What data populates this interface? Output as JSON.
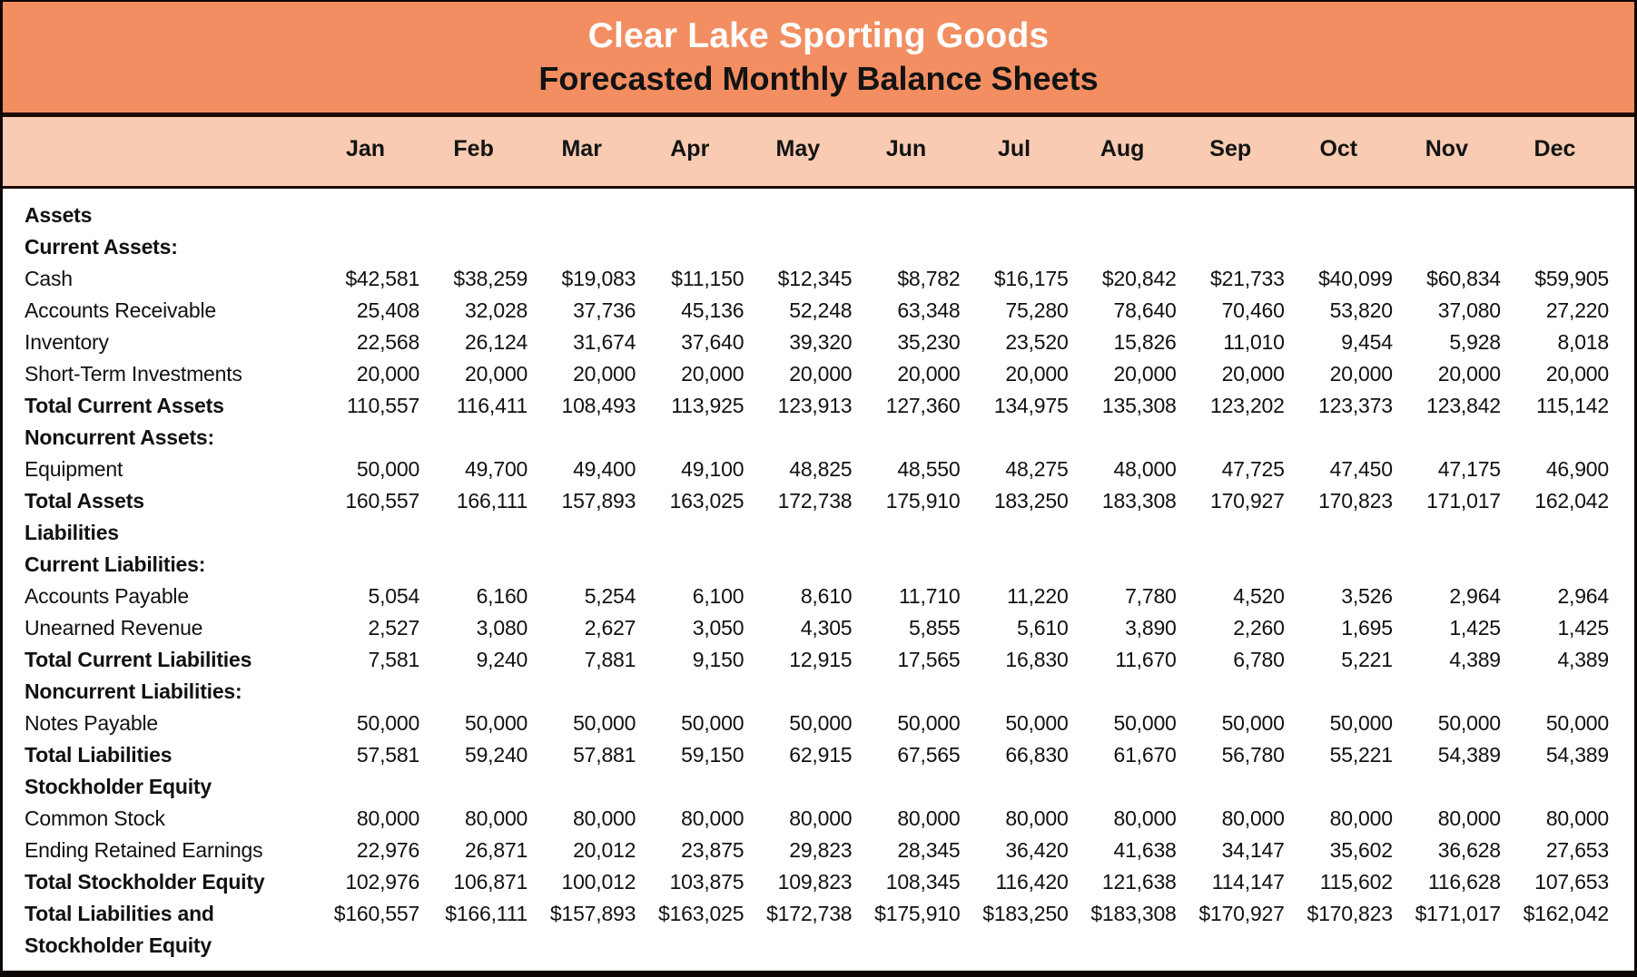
{
  "header": {
    "title": "Clear Lake Sporting Goods",
    "subtitle": "Forecasted Monthly Balance Sheets"
  },
  "colors": {
    "header_bg": "#f28e62",
    "months_bg": "#f8cbb2",
    "divider": "#1e0b06",
    "border": "#0d0705",
    "title_text": "#ffffff",
    "body_text": "#111111"
  },
  "table": {
    "months": [
      "Jan",
      "Feb",
      "Mar",
      "Apr",
      "May",
      "Jun",
      "Jul",
      "Aug",
      "Sep",
      "Oct",
      "Nov",
      "Dec"
    ],
    "rows": [
      {
        "label": "Assets",
        "style": "section",
        "values": []
      },
      {
        "label": "Current Assets:",
        "style": "section",
        "values": []
      },
      {
        "label": "Cash",
        "style": "item",
        "values": [
          "$42,581",
          "$38,259",
          "$19,083",
          "$11,150",
          "$12,345",
          "$8,782",
          "$16,175",
          "$20,842",
          "$21,733",
          "$40,099",
          "$60,834",
          "$59,905"
        ]
      },
      {
        "label": "Accounts Receivable",
        "style": "item",
        "values": [
          "25,408",
          "32,028",
          "37,736",
          "45,136",
          "52,248",
          "63,348",
          "75,280",
          "78,640",
          "70,460",
          "53,820",
          "37,080",
          "27,220"
        ]
      },
      {
        "label": "Inventory",
        "style": "item",
        "values": [
          "22,568",
          "26,124",
          "31,674",
          "37,640",
          "39,320",
          "35,230",
          "23,520",
          "15,826",
          "11,010",
          "9,454",
          "5,928",
          "8,018"
        ]
      },
      {
        "label": "Short-Term Investments",
        "style": "item",
        "values": [
          "20,000",
          "20,000",
          "20,000",
          "20,000",
          "20,000",
          "20,000",
          "20,000",
          "20,000",
          "20,000",
          "20,000",
          "20,000",
          "20,000"
        ]
      },
      {
        "label": "Total Current Assets",
        "style": "total",
        "values": [
          "110,557",
          "116,411",
          "108,493",
          "113,925",
          "123,913",
          "127,360",
          "134,975",
          "135,308",
          "123,202",
          "123,373",
          "123,842",
          "115,142"
        ]
      },
      {
        "label": "Noncurrent Assets:",
        "style": "section",
        "values": []
      },
      {
        "label": "Equipment",
        "style": "item",
        "values": [
          "50,000",
          "49,700",
          "49,400",
          "49,100",
          "48,825",
          "48,550",
          "48,275",
          "48,000",
          "47,725",
          "47,450",
          "47,175",
          "46,900"
        ]
      },
      {
        "label": "Total Assets",
        "style": "total",
        "values": [
          "160,557",
          "166,111",
          "157,893",
          "163,025",
          "172,738",
          "175,910",
          "183,250",
          "183,308",
          "170,927",
          "170,823",
          "171,017",
          "162,042"
        ]
      },
      {
        "label": "Liabilities",
        "style": "section",
        "values": []
      },
      {
        "label": "Current Liabilities:",
        "style": "section",
        "values": []
      },
      {
        "label": "Accounts Payable",
        "style": "item",
        "values": [
          "5,054",
          "6,160",
          "5,254",
          "6,100",
          "8,610",
          "11,710",
          "11,220",
          "7,780",
          "4,520",
          "3,526",
          "2,964",
          "2,964"
        ]
      },
      {
        "label": "Unearned Revenue",
        "style": "item",
        "values": [
          "2,527",
          "3,080",
          "2,627",
          "3,050",
          "4,305",
          "5,855",
          "5,610",
          "3,890",
          "2,260",
          "1,695",
          "1,425",
          "1,425"
        ]
      },
      {
        "label": "Total Current Liabilities",
        "style": "total",
        "values": [
          "7,581",
          "9,240",
          "7,881",
          "9,150",
          "12,915",
          "17,565",
          "16,830",
          "11,670",
          "6,780",
          "5,221",
          "4,389",
          "4,389"
        ]
      },
      {
        "label": "Noncurrent Liabilities:",
        "style": "section",
        "values": []
      },
      {
        "label": "Notes Payable",
        "style": "item",
        "values": [
          "50,000",
          "50,000",
          "50,000",
          "50,000",
          "50,000",
          "50,000",
          "50,000",
          "50,000",
          "50,000",
          "50,000",
          "50,000",
          "50,000"
        ]
      },
      {
        "label": "Total Liabilities",
        "style": "total",
        "values": [
          "57,581",
          "59,240",
          "57,881",
          "59,150",
          "62,915",
          "67,565",
          "66,830",
          "61,670",
          "56,780",
          "55,221",
          "54,389",
          "54,389"
        ]
      },
      {
        "label": "Stockholder Equity",
        "style": "section",
        "values": []
      },
      {
        "label": "Common Stock",
        "style": "item",
        "values": [
          "80,000",
          "80,000",
          "80,000",
          "80,000",
          "80,000",
          "80,000",
          "80,000",
          "80,000",
          "80,000",
          "80,000",
          "80,000",
          "80,000"
        ]
      },
      {
        "label": "Ending Retained Earnings",
        "style": "item",
        "values": [
          "22,976",
          "26,871",
          "20,012",
          "23,875",
          "29,823",
          "28,345",
          "36,420",
          "41,638",
          "34,147",
          "35,602",
          "36,628",
          "27,653"
        ]
      },
      {
        "label": "Total Stockholder Equity",
        "style": "total",
        "values": [
          "102,976",
          "106,871",
          "100,012",
          "103,875",
          "109,823",
          "108,345",
          "116,420",
          "121,638",
          "114,147",
          "115,602",
          "116,628",
          "107,653"
        ]
      },
      {
        "label": "Total Liabilities and Stockholder Equity",
        "label_lines": [
          "Total Liabilities and",
          "Stockholder Equity"
        ],
        "style": "total",
        "values": [
          "$160,557",
          "$166,111",
          "$157,893",
          "$163,025",
          "$172,738",
          "$175,910",
          "$183,250",
          "$183,308",
          "$170,927",
          "$170,823",
          "$171,017",
          "$162,042"
        ]
      }
    ]
  }
}
